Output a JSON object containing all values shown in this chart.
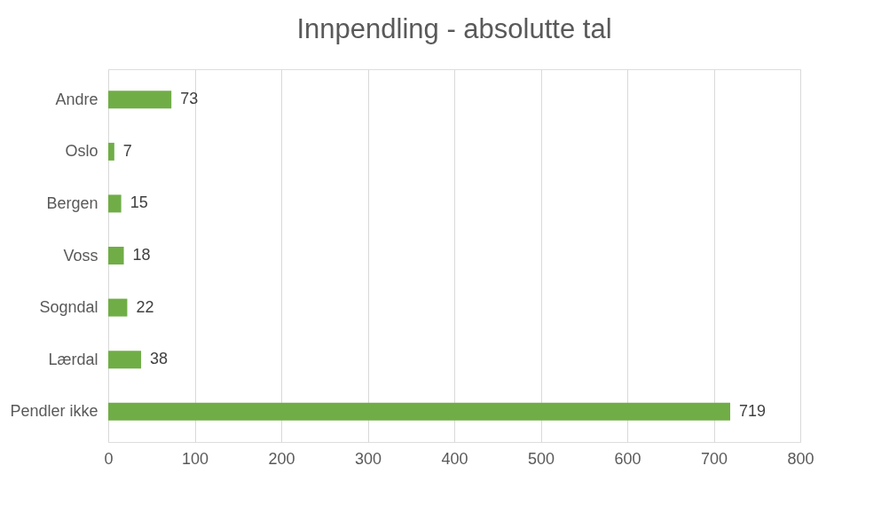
{
  "chart_data": {
    "type": "bar",
    "orientation": "horizontal",
    "title": "Innpendling - absolutte tal",
    "categories": [
      "Andre",
      "Oslo",
      "Bergen",
      "Voss",
      "Sogndal",
      "Lærdal",
      "Pendler ikke"
    ],
    "values": [
      73,
      7,
      15,
      18,
      22,
      38,
      719
    ],
    "color": "#70ad47",
    "xlim": [
      0,
      800
    ],
    "xticks": [
      0,
      100,
      200,
      300,
      400,
      500,
      600,
      700,
      800
    ],
    "grid": "x",
    "data_labels": true
  }
}
